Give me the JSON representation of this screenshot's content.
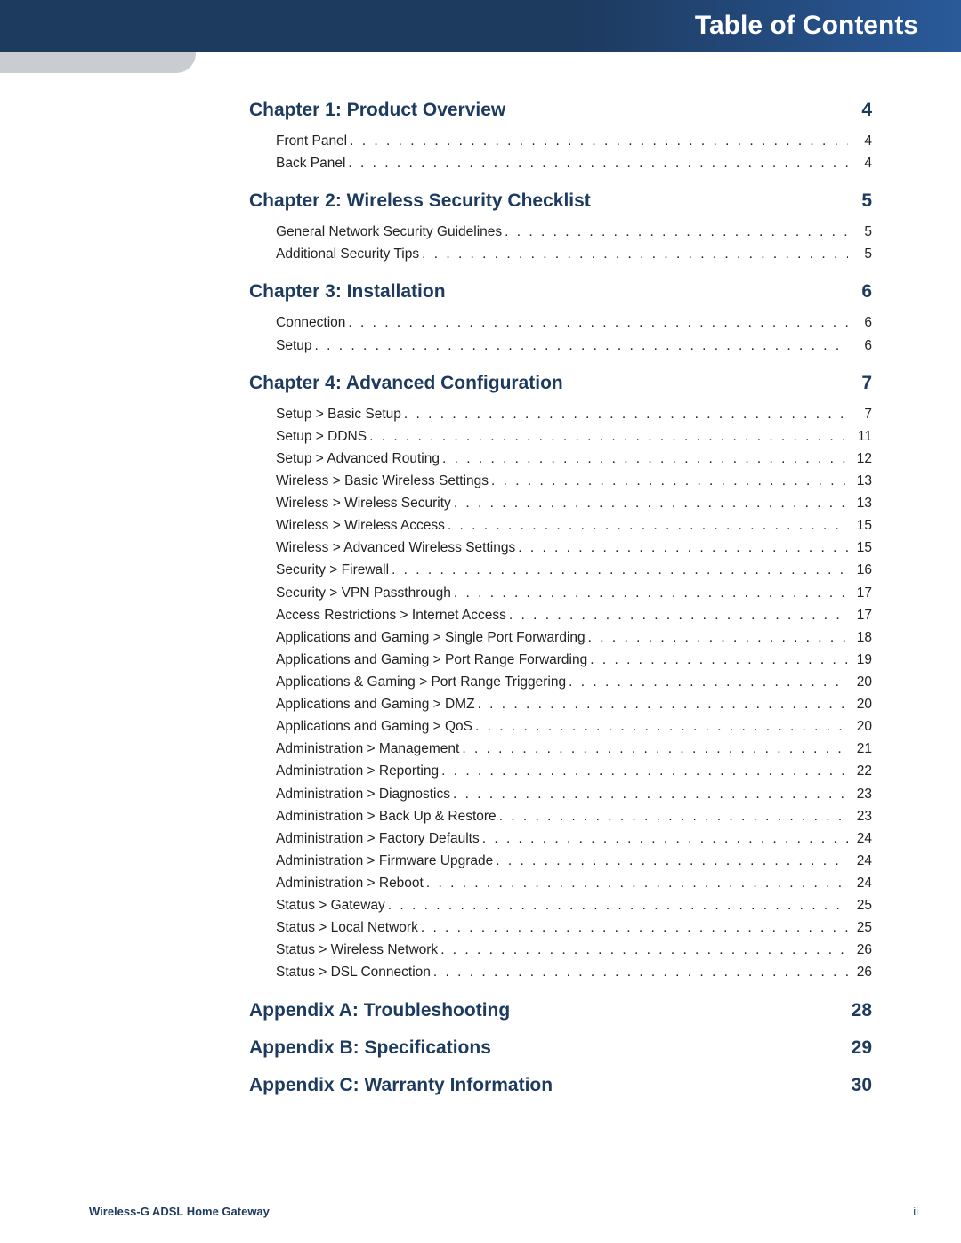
{
  "header": {
    "title": "Table of Contents"
  },
  "footer": {
    "product": "Wireless-G ADSL Home Gateway",
    "page": "ii"
  },
  "colors": {
    "brand": "#1d3a5f",
    "gradient_end": "#2a5a9a",
    "tab": "#c9ccd0",
    "text": "#222222"
  },
  "toc": [
    {
      "title": "Chapter 1: Product Overview",
      "page": "4",
      "entries": [
        {
          "label": "Front Panel",
          "page": "4"
        },
        {
          "label": "Back Panel",
          "page": "4"
        }
      ]
    },
    {
      "title": "Chapter 2: Wireless Security Checklist",
      "page": "5",
      "entries": [
        {
          "label": "General Network Security Guidelines",
          "page": "5"
        },
        {
          "label": "Additional Security Tips",
          "page": "5"
        }
      ]
    },
    {
      "title": "Chapter 3: Installation",
      "page": "6",
      "entries": [
        {
          "label": "Connection",
          "page": "6"
        },
        {
          "label": "Setup",
          "page": "6"
        }
      ]
    },
    {
      "title": "Chapter 4: Advanced Configuration",
      "page": "7",
      "entries": [
        {
          "label": "Setup > Basic Setup",
          "page": "7"
        },
        {
          "label": "Setup > DDNS",
          "page": "11"
        },
        {
          "label": "Setup > Advanced Routing",
          "page": "12"
        },
        {
          "label": "Wireless > Basic Wireless Settings",
          "page": "13"
        },
        {
          "label": "Wireless > Wireless Security",
          "page": "13"
        },
        {
          "label": "Wireless > Wireless Access",
          "page": "15"
        },
        {
          "label": "Wireless > Advanced Wireless Settings",
          "page": "15"
        },
        {
          "label": "Security > Firewall",
          "page": "16"
        },
        {
          "label": "Security > VPN Passthrough",
          "page": "17"
        },
        {
          "label": "Access Restrictions > Internet Access",
          "page": "17"
        },
        {
          "label": "Applications and Gaming > Single Port Forwarding",
          "page": "18"
        },
        {
          "label": "Applications and Gaming > Port Range Forwarding",
          "page": "19"
        },
        {
          "label": "Applications & Gaming > Port Range Triggering",
          "page": "20"
        },
        {
          "label": "Applications and Gaming > DMZ",
          "page": "20"
        },
        {
          "label": "Applications and Gaming > QoS",
          "page": "20"
        },
        {
          "label": "Administration > Management",
          "page": "21"
        },
        {
          "label": "Administration > Reporting",
          "page": "22"
        },
        {
          "label": "Administration > Diagnostics",
          "page": "23"
        },
        {
          "label": "Administration > Back Up & Restore",
          "page": "23"
        },
        {
          "label": "Administration > Factory Defaults",
          "page": "24"
        },
        {
          "label": "Administration > Firmware Upgrade",
          "page": "24"
        },
        {
          "label": "Administration > Reboot",
          "page": "24"
        },
        {
          "label": "Status > Gateway",
          "page": "25"
        },
        {
          "label": "Status > Local Network",
          "page": "25"
        },
        {
          "label": "Status > Wireless Network",
          "page": "26"
        },
        {
          "label": "Status > DSL Connection",
          "page": "26"
        }
      ]
    },
    {
      "title": "Appendix A: Troubleshooting",
      "page": "28",
      "entries": []
    },
    {
      "title": "Appendix B: Specifications",
      "page": "29",
      "entries": []
    },
    {
      "title": "Appendix C: Warranty Information",
      "page": "30",
      "entries": []
    }
  ]
}
